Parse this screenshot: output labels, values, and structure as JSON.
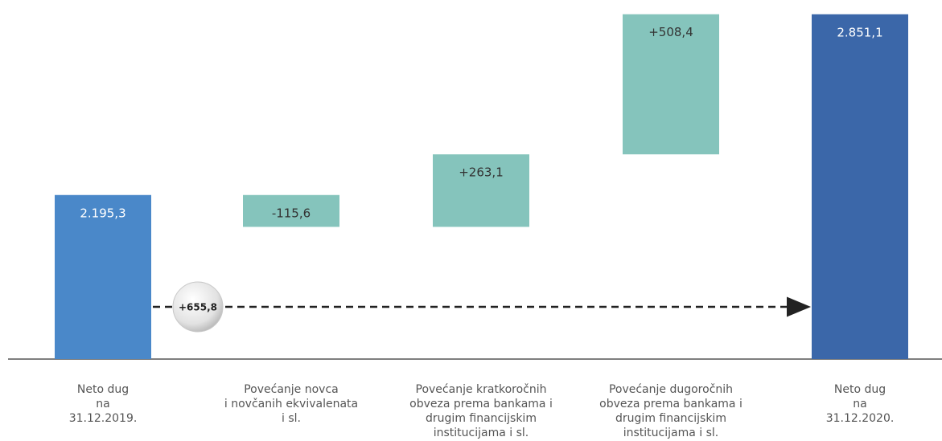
{
  "chart_data": {
    "type": "waterfall",
    "categories": [
      [
        "Neto dug",
        "na",
        "31.12.2019."
      ],
      [
        "Povećanje novca",
        "i novčanih ekvivalenata",
        "i sl."
      ],
      [
        "Povećanje kratkoročnih",
        "obveza prema bankama i",
        "drugim financijskim",
        "institucijama i sl."
      ],
      [
        "Povećanje dugoročnih",
        "obveza prema bankama i",
        "drugim financijskim",
        "institucijama i sl."
      ],
      [
        "Neto dug",
        "na",
        "31.12.2020."
      ]
    ],
    "values": [
      2195.3,
      -115.6,
      263.1,
      508.4,
      2851.1
    ],
    "value_labels": [
      "2.195,3",
      "-115,6",
      "+263,1",
      "+508,4",
      "2.851,1"
    ],
    "is_total": [
      true,
      false,
      false,
      false,
      true
    ],
    "colors": [
      "#4a88c9",
      "#85c4bc",
      "#85c4bc",
      "#85c4bc",
      "#3b67a9"
    ],
    "ylim": [
      1600,
      2900
    ],
    "annotation": "+655,8"
  }
}
